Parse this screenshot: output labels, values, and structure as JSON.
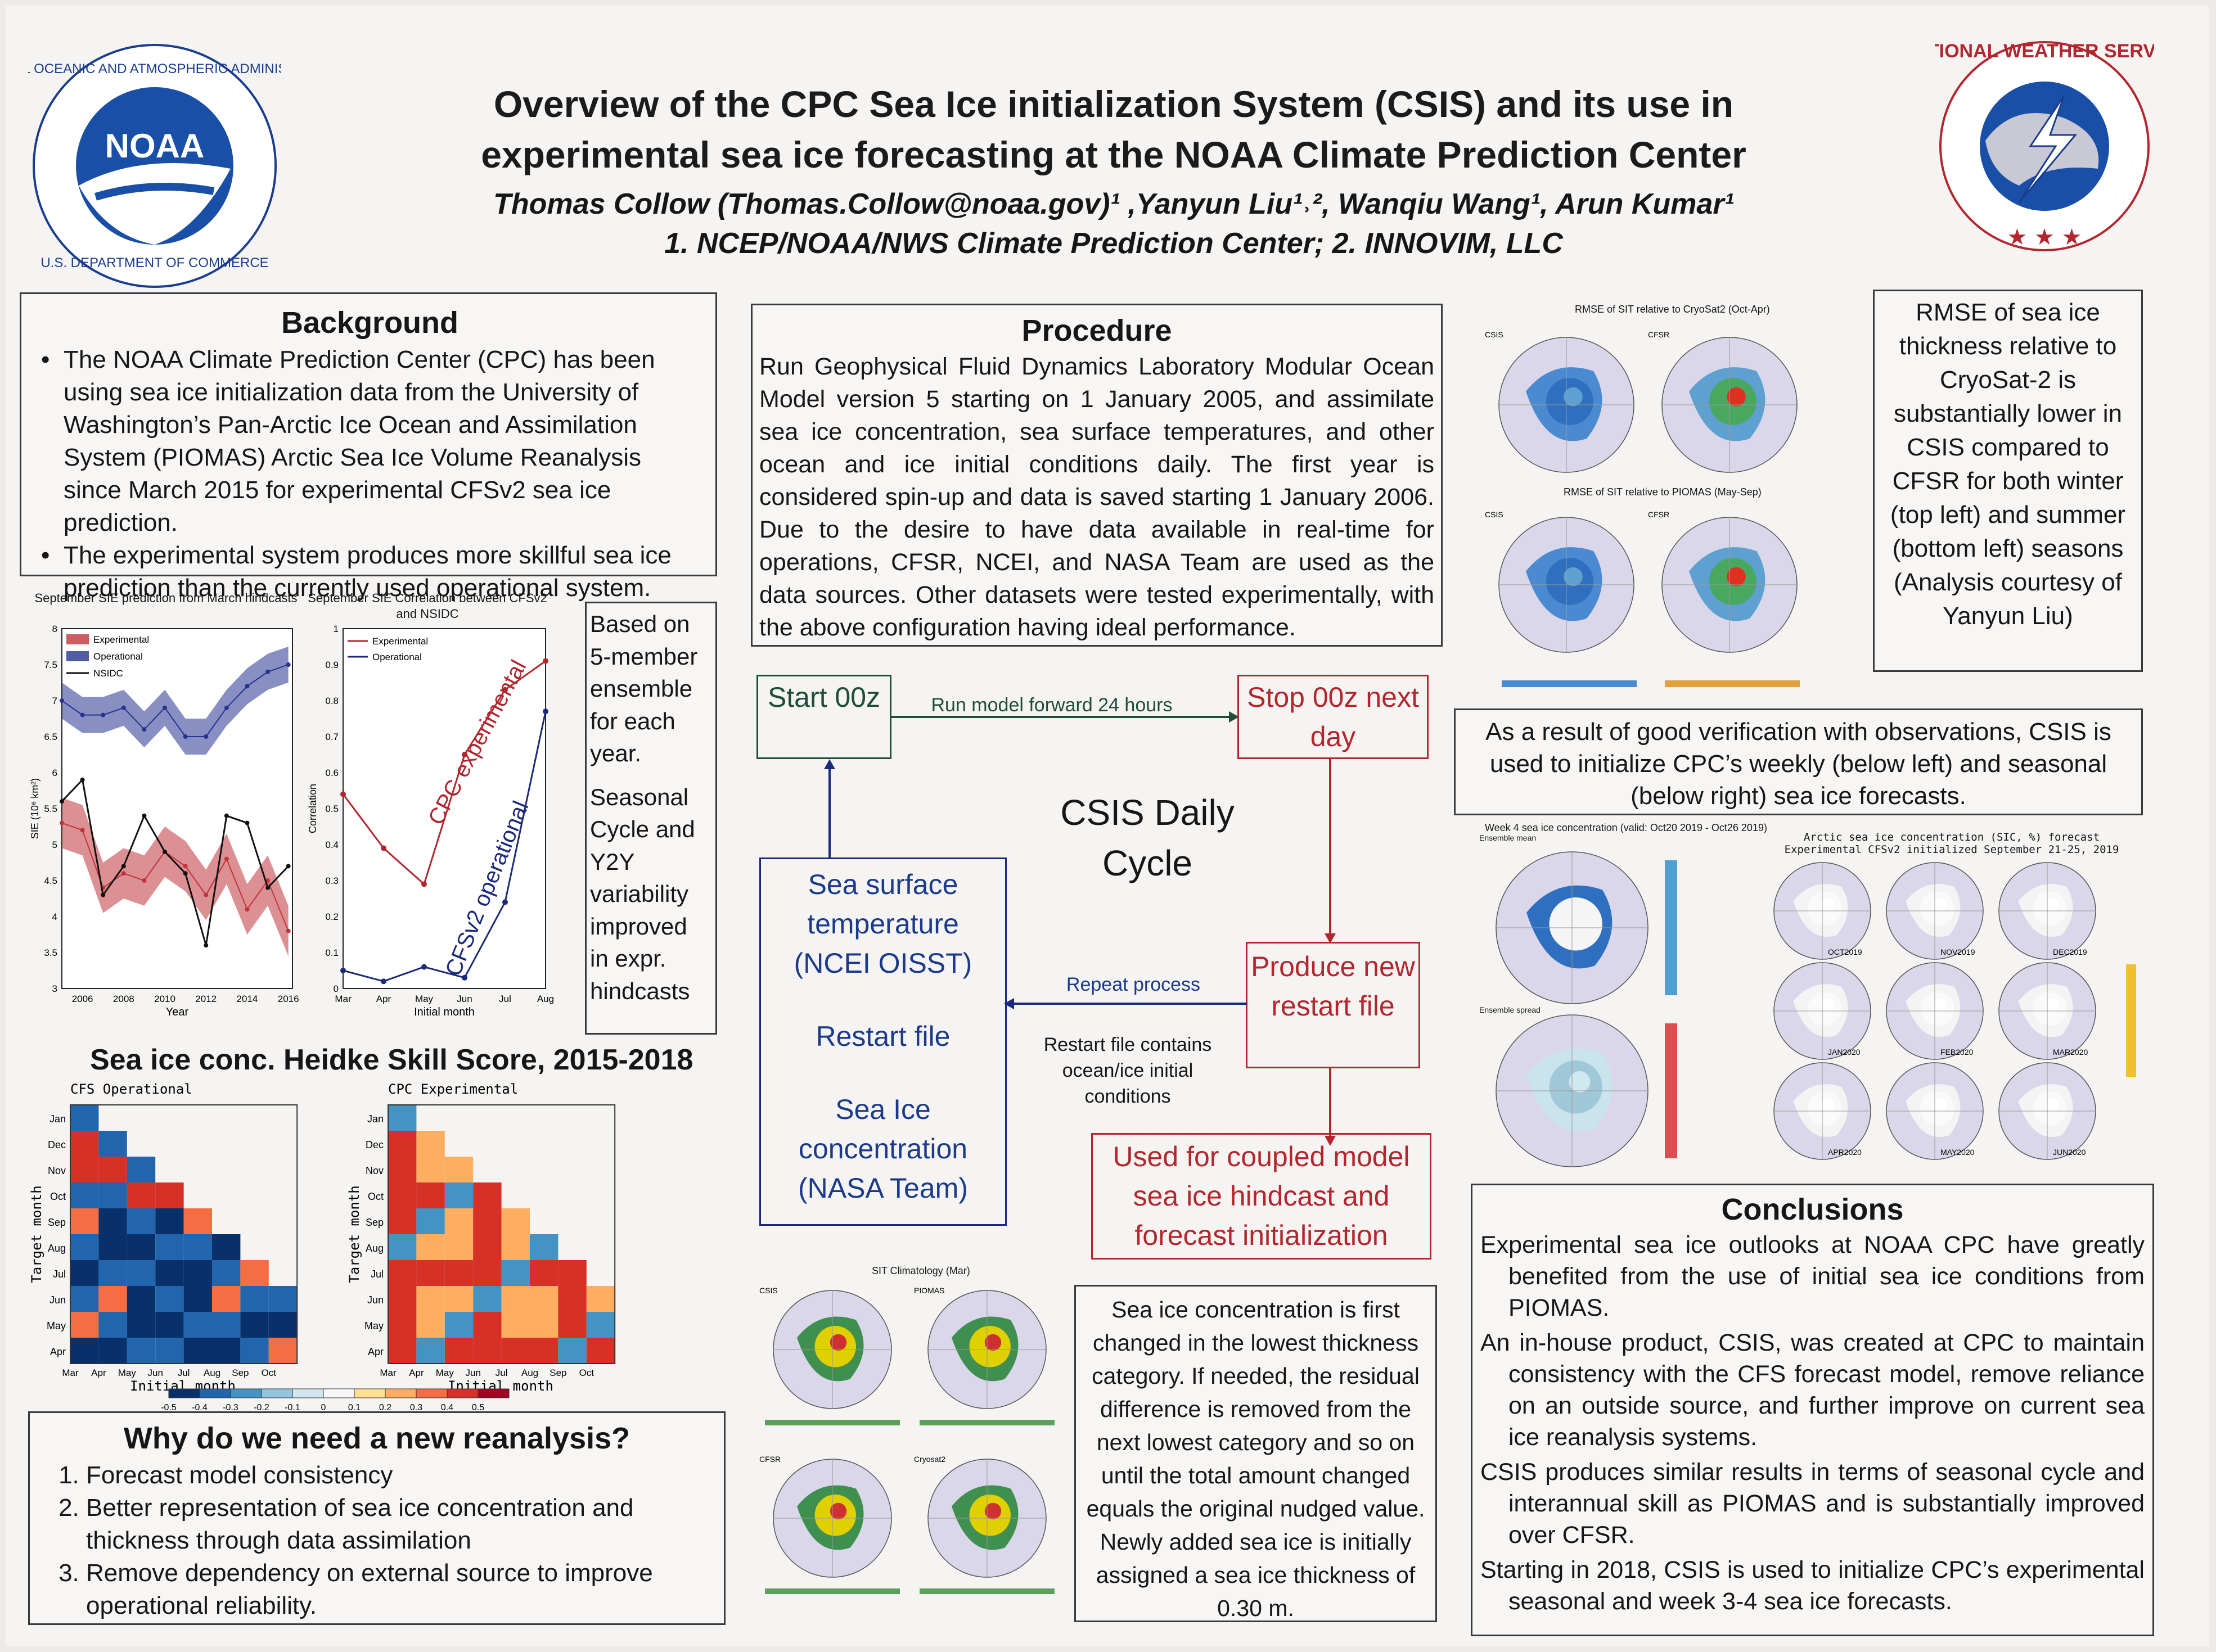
{
  "header": {
    "title_line1": "Overview of the CPC Sea Ice initialization System (CSIS) and its use in",
    "title_line2": "experimental sea ice forecasting at the NOAA Climate Prediction Center",
    "authors": "Thomas Collow (Thomas.Collow@noaa.gov)¹ ,Yanyun Liu¹˒², Wanqiu Wang¹, Arun Kumar¹",
    "affiliations": "1. NCEP/NOAA/NWS Climate Prediction Center; 2. INNOVIM, LLC"
  },
  "logos": {
    "noaa_text": "NOAA",
    "noaa_ring_top": "NATIONAL OCEANIC AND ATMOSPHERIC ADMINISTRATION",
    "noaa_ring_bottom": "U.S. DEPARTMENT OF COMMERCE",
    "nws_ring": "NATIONAL WEATHER SERVICE"
  },
  "background": {
    "heading": "Background",
    "items": [
      "The NOAA Climate Prediction Center (CPC) has been using sea ice initialization data from the University of Washington’s  Pan-Arctic Ice Ocean and Assimilation System (PIOMAS) Arctic Sea Ice Volume Reanalysis since March 2015 for experimental CFSv2 sea ice prediction.",
      "The experimental system produces more skillful sea ice prediction than the currently used operational system."
    ]
  },
  "chart_note": {
    "lines": [
      "Based on",
      "5-member",
      "ensemble",
      "for each",
      "year.",
      "",
      "Seasonal",
      "Cycle and",
      "Y2Y",
      "variability",
      "improved",
      "in expr.",
      "hindcasts"
    ]
  },
  "chart_data": [
    {
      "type": "line",
      "title": "September SIE prediction from March hindcasts",
      "xlabel": "Year",
      "ylabel": "SIE (10⁶ km²)",
      "x": [
        2005,
        2006,
        2007,
        2008,
        2009,
        2010,
        2011,
        2012,
        2013,
        2014,
        2015,
        2016
      ],
      "ylim": [
        3,
        8
      ],
      "yticks": [
        3,
        3.5,
        4,
        4.5,
        5,
        5.5,
        6,
        6.5,
        7,
        7.5,
        8
      ],
      "xticks": [
        2006,
        2008,
        2010,
        2012,
        2014,
        2016
      ],
      "legend": [
        "Experimental",
        "Operational",
        "NSIDC"
      ],
      "series": [
        {
          "name": "Experimental",
          "values": [
            5.3,
            5.2,
            4.4,
            4.6,
            4.5,
            4.9,
            4.7,
            4.3,
            4.8,
            4.1,
            4.5,
            3.8
          ],
          "color": "#c0343c"
        },
        {
          "name": "Operational",
          "values": [
            7.0,
            6.8,
            6.8,
            6.9,
            6.6,
            6.9,
            6.5,
            6.5,
            6.9,
            7.2,
            7.4,
            7.5
          ],
          "color": "#27338f"
        },
        {
          "name": "NSIDC",
          "values": [
            5.6,
            5.9,
            4.3,
            4.7,
            5.4,
            4.9,
            4.6,
            3.6,
            5.4,
            5.3,
            4.4,
            4.7
          ],
          "color": "#111111"
        }
      ]
    },
    {
      "type": "line",
      "title": "September SIE Correlation between CFSv2 and NSIDC",
      "xlabel": "Initial month",
      "ylabel": "Correlation",
      "categories": [
        "Mar",
        "Apr",
        "May",
        "Jun",
        "Jul",
        "Aug"
      ],
      "ylim": [
        0,
        1
      ],
      "yticks": [
        0,
        0.1,
        0.2,
        0.3,
        0.4,
        0.5,
        0.6,
        0.7,
        0.8,
        0.9,
        1
      ],
      "legend": [
        "Experimental",
        "Operational"
      ],
      "annotations": [
        "CPC experimental",
        "CFSv2 operational"
      ],
      "series": [
        {
          "name": "Experimental",
          "values": [
            0.54,
            0.39,
            0.29,
            0.65,
            0.83,
            0.91
          ],
          "color": "#b3262e"
        },
        {
          "name": "Operational",
          "values": [
            0.05,
            0.02,
            0.06,
            0.03,
            0.24,
            0.77
          ],
          "color": "#1b2a7a"
        }
      ]
    }
  ],
  "heidke": {
    "heading": "Sea ice conc. Heidke Skill Score, 2015-2018",
    "left_title": "CFS  Operational",
    "right_title": "CPC  Experimental",
    "ylabel": "Target  month",
    "xlabel": "Initial  month",
    "xmonths": [
      "Mar",
      "Apr",
      "May",
      "Jun",
      "Jul",
      "Aug",
      "Sep",
      "Oct"
    ],
    "ymonths": [
      "Jan",
      "Dec",
      "Nov",
      "Oct",
      "Sep",
      "Aug",
      "Jul",
      "Jun",
      "May",
      "Apr"
    ],
    "colorbar": [
      "-0.5",
      "-0.4",
      "-0.3",
      "-0.2",
      "-0.1",
      "0",
      "0.1",
      "0.2",
      "0.3",
      "0.4",
      "0.5"
    ]
  },
  "why": {
    "heading": "Why do we need a new reanalysis?",
    "items": [
      "Forecast model consistency",
      "Better representation of sea ice concentration and thickness through data assimilation",
      "Remove dependency on external source to improve operational reliability."
    ]
  },
  "procedure": {
    "heading": "Procedure",
    "text": "Run Geophysical Fluid Dynamics Laboratory Modular Ocean Model version 5 starting on 1 January 2005, and assimilate sea ice concentration, sea surface temperatures, and other ocean and ice initial conditions daily. The first year is considered spin-up and data is saved starting 1 January 2006. Due to the desire to have data available in real-time for operations, CFSR, NCEI, and NASA Team are used as the data sources. Other datasets were tested experimentally, with the above configuration having ideal performance."
  },
  "cycle": {
    "start": "Start 00z",
    "run_label": "Run model forward 24 hours",
    "stop": "Stop 00z next day",
    "title": "CSIS Daily Cycle",
    "produce": "Produce new restart file",
    "repeat": "Repeat process",
    "restart_note": "Restart file contains ocean/ice initial conditions",
    "inputs": [
      "Sea surface temperature (NCEI OISST)",
      "Restart file",
      "Sea Ice concentration (NASA Team)"
    ],
    "used_for": "Used for coupled model sea ice hindcast and forecast initialization"
  },
  "sit_climatology": {
    "title": "SIT Climatology (Mar)",
    "panels": [
      "CSIS",
      "PIOMAS",
      "CFSR",
      "Cryosat2"
    ]
  },
  "concentration_note": "Sea ice concentration is first changed in the lowest thickness category.  If needed, the residual difference is removed from the next lowest category and so on until the total amount changed equals the original nudged value.  Newly added sea ice is initially assigned a sea ice thickness of 0.30 m.",
  "rmse_maps": {
    "top_title": "RMSE of SIT relative to CryoSat2 (Oct-Apr)",
    "bottom_title": "RMSE of SIT relative to PIOMAS (May-Sep)",
    "panels": [
      "CSIS",
      "CFSR"
    ]
  },
  "rmse_note": "RMSE of sea ice thickness relative to CryoSat-2 is substantially lower in CSIS compared to CFSR  for both winter (top left) and summer (bottom left) seasons (Analysis courtesy of Yanyun Liu)",
  "verification_note": "As a result of good verification with observations, CSIS is used to initialize CPC’s weekly (below left) and seasonal (below right) sea ice forecasts.",
  "week4": {
    "title": "Week 4 sea ice concentration (valid: Oct20 2019 - Oct26 2019)",
    "mean_label": "Ensemble mean",
    "spread_label": "Ensemble spread"
  },
  "seasonal": {
    "title_line1": "Arctic sea ice concentration (SIC, %) forecast",
    "title_line2": "Experimental CFSv2 initialized September 21-25, 2019",
    "months": [
      "OCT2019",
      "NOV2019",
      "DEC2019",
      "JAN2020",
      "FEB2020",
      "MAR2020",
      "APR2020",
      "MAY2020",
      "JUN2020"
    ]
  },
  "conclusions": {
    "heading": "Conclusions",
    "items": [
      "Experimental sea ice outlooks at NOAA CPC have greatly benefited from the use of initial sea ice conditions from PIOMAS.",
      "An in-house product, CSIS, was created at CPC to maintain consistency with the CFS forecast model, remove reliance on an outside source, and further improve on current sea ice reanalysis systems.",
      "CSIS produces similar results in terms of seasonal cycle and interannual skill as PIOMAS and is substantially improved over CFSR.",
      "Starting in 2018, CSIS is used to initialize CPC’s experimental seasonal and week 3-4 sea ice forecasts."
    ]
  }
}
